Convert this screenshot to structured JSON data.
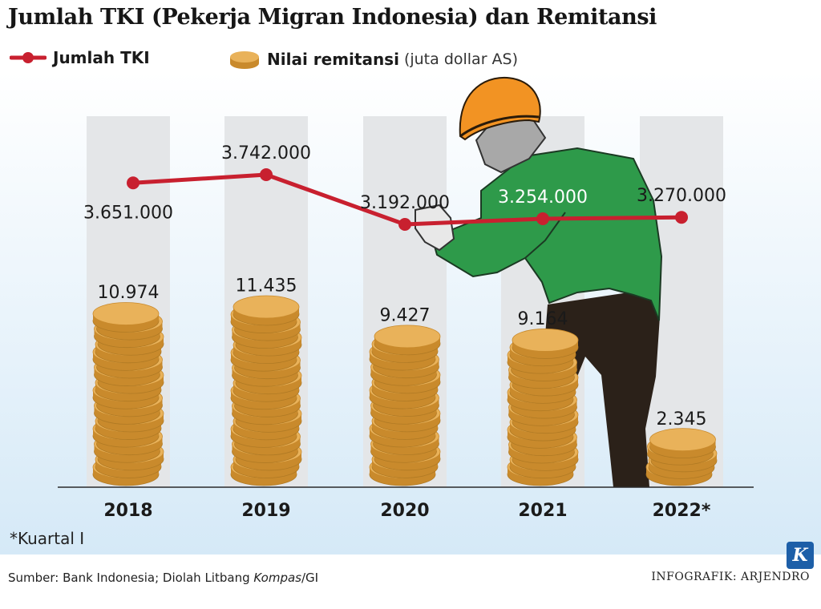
{
  "title": "Jumlah TKI (Pekerja Migran Indonesia) dan Remitansi",
  "legend": {
    "line_label": "Jumlah TKI",
    "coins_label": "Nilai remitansi",
    "coins_unit": "(juta dollar AS)"
  },
  "footnote": "*Kuartal I",
  "source": {
    "prefix": "Sumber: Bank Indonesia; Diolah Litbang ",
    "italic": "Kompas",
    "suffix": "/GI"
  },
  "credit": "INFOGRAFIK: ARJENDRO",
  "logo_letter": "K",
  "colors": {
    "line": "#c8202f",
    "coin": "#e9b25a",
    "coin_dark": "#c98a2c",
    "column": "#e4e6e8",
    "axis": "#2a2a2a"
  },
  "chart_data": {
    "type": "bar+line",
    "categories": [
      "2018",
      "2019",
      "2020",
      "2021",
      "2022*"
    ],
    "series": [
      {
        "name": "Jumlah TKI",
        "kind": "line",
        "values": [
          3651000,
          3742000,
          3192000,
          3254000,
          3270000
        ],
        "labels": [
          "3.651.000",
          "3.742.000",
          "3.192.000",
          "3.254.000",
          "3.270.000"
        ]
      },
      {
        "name": "Nilai remitansi",
        "kind": "coin-stack",
        "values": [
          10974,
          11435,
          9427,
          9164,
          2345
        ],
        "labels": [
          "10.974",
          "11.435",
          "9.427",
          "9.164",
          "2.345"
        ]
      }
    ]
  }
}
